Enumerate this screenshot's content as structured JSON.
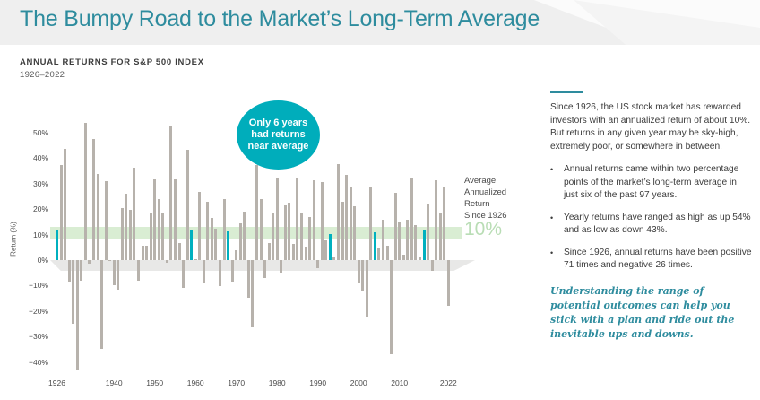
{
  "header": {
    "title": "The Bumpy Road to the Market’s Long-Term Average"
  },
  "subtitle": {
    "line1": "ANNUAL RETURNS FOR S&P 500 INDEX",
    "line2": "1926–2022"
  },
  "chart": {
    "ylabel": "Return (%)",
    "callout_text": "Only 6 years\nhad returns\nnear average",
    "avg_label": "Average\nAnnualized\nReturn\nSince 1926",
    "avg_value": "10%"
  },
  "colors": {
    "accent_teal": "#2e8c9e",
    "bar_gray": "#b7b2ac",
    "bar_highlight": "#00b0bf",
    "callout_bg": "#00adbb",
    "band_green": "#d9edd3",
    "avg_value_green": "#b9ddb5",
    "floor_gray": "#e8e8e7"
  },
  "chart_data": {
    "type": "bar",
    "title": "Annual Returns for S&P 500 Index 1926–2022",
    "xlabel": "",
    "ylabel": "Return (%)",
    "x_start_year": 1926,
    "x_end_year": 2022,
    "values": [
      11.6,
      37.5,
      43.6,
      -8.4,
      -24.9,
      -43.3,
      -8.2,
      54.0,
      -1.4,
      47.7,
      33.9,
      -35.0,
      31.1,
      -0.4,
      -9.8,
      -11.6,
      20.3,
      25.9,
      19.8,
      36.4,
      -8.1,
      5.7,
      5.5,
      18.8,
      31.7,
      24.0,
      18.4,
      -1.0,
      52.6,
      31.6,
      6.6,
      -10.8,
      43.4,
      12.0,
      0.5,
      26.9,
      -8.7,
      22.8,
      16.5,
      12.5,
      -10.1,
      24.0,
      11.1,
      -8.5,
      4.0,
      14.3,
      19.0,
      -14.7,
      -26.5,
      37.2,
      23.8,
      -7.2,
      6.6,
      18.4,
      32.4,
      -4.9,
      21.4,
      22.5,
      6.3,
      32.2,
      18.5,
      5.2,
      16.8,
      31.5,
      -3.1,
      30.5,
      7.6,
      10.1,
      1.3,
      37.6,
      23.0,
      33.4,
      28.6,
      21.0,
      -9.1,
      -11.9,
      -22.1,
      28.7,
      10.9,
      4.9,
      15.8,
      5.5,
      -37.0,
      26.5,
      15.1,
      2.1,
      16.0,
      32.4,
      13.7,
      1.4,
      12.0,
      21.8,
      -4.4,
      31.5,
      18.4,
      28.7,
      -18.1
    ],
    "highlight_years": [
      1926,
      1959,
      1968,
      1993,
      2004,
      2016
    ],
    "average_band": {
      "label": "Average Annualized Return Since 1926",
      "value": "10%",
      "band_range": [
        8,
        13
      ]
    },
    "ylim": [
      -45,
      56
    ],
    "yticks": [
      50,
      40,
      30,
      20,
      10,
      0,
      -10,
      -20,
      -30,
      -40
    ],
    "ytick_labels": [
      "50%",
      "40%",
      "30%",
      "20%",
      "10%",
      "0%",
      "−10%",
      "−20%",
      "−30%",
      "−40%"
    ],
    "xticks": [
      1926,
      1940,
      1950,
      1960,
      1970,
      1980,
      1990,
      2000,
      2010,
      2022
    ],
    "grid": false,
    "legend": false
  },
  "panel": {
    "intro": "Since 1926, the US stock market has rewarded investors with an annualized return of about 10%. But returns in any given year may be sky-high, extremely poor, or somewhere in between.",
    "bullets": [
      "Annual returns came within two percentage points of the market’s long-term average in just six of the past 97 years.",
      "Yearly returns have ranged as high as up 54% and as low as down 43%.",
      "Since 1926, annual returns have been positive 71 times and negative 26 times."
    ],
    "closing": "Understanding the range of potential outcomes can help you stick with a plan and ride out the inevitable ups and downs."
  }
}
